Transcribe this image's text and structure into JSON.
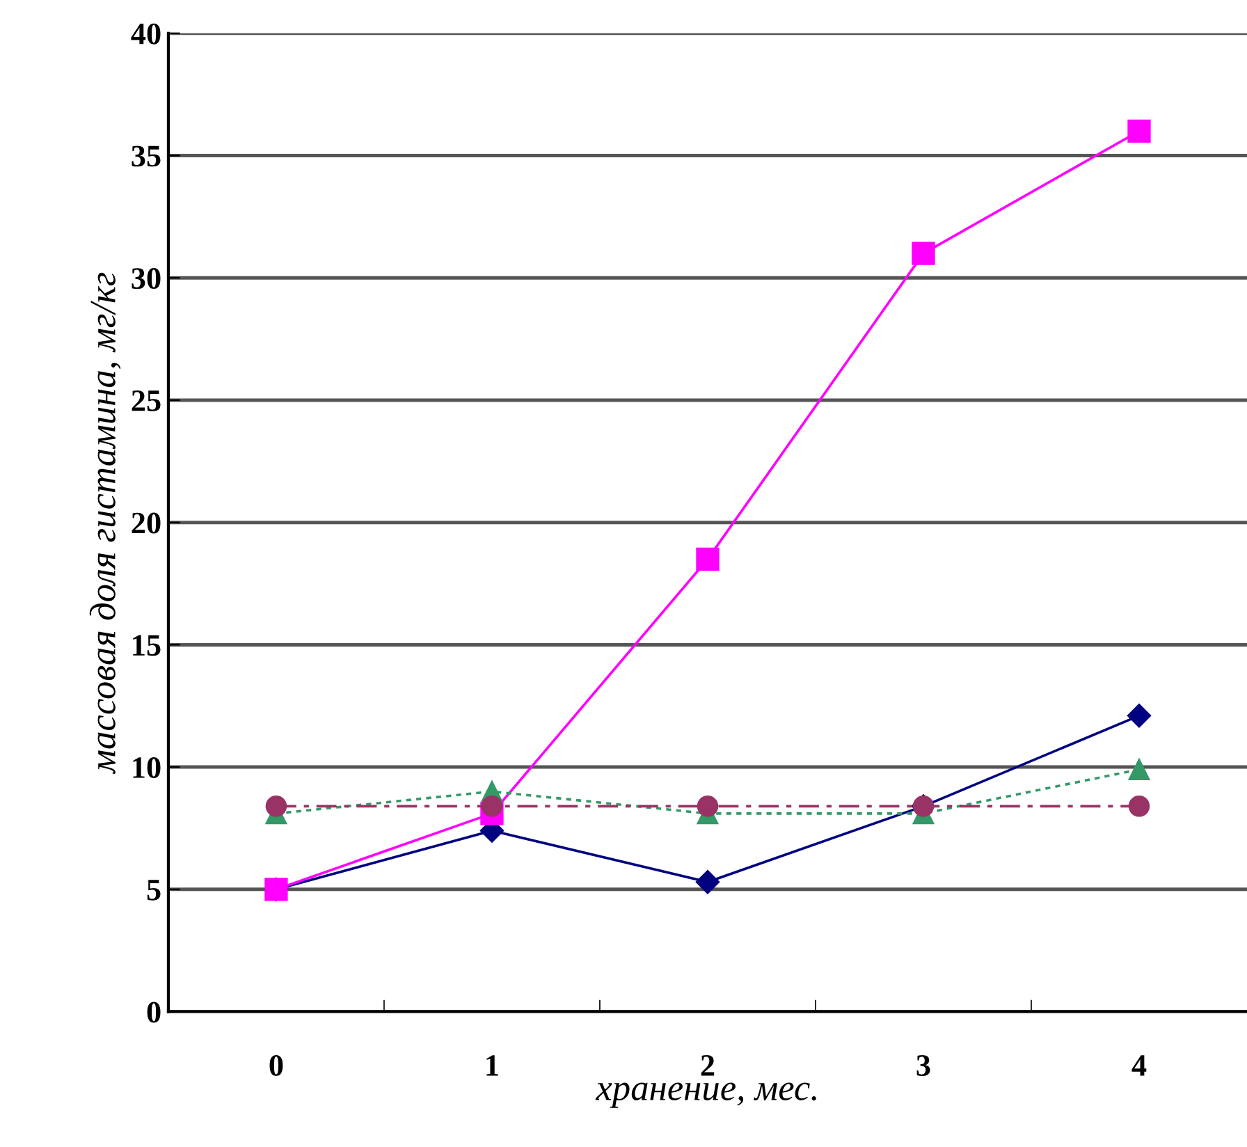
{
  "chart_data": {
    "type": "line",
    "xlabel": "хранение, мес.",
    "ylabel": "массовая доля гистамина, мг/кг",
    "categories": [
      "0",
      "1",
      "2",
      "3",
      "4"
    ],
    "series": [
      {
        "color": "#000080",
        "marker": "diamond",
        "line_style": "solid",
        "values": [
          5.0,
          7.4,
          5.3,
          8.4,
          12.1
        ]
      },
      {
        "color": "#ff00ff",
        "marker": "square",
        "line_style": "solid",
        "values": [
          5.0,
          8.1,
          18.5,
          31.0,
          36.0
        ]
      },
      {
        "color": "#339966",
        "marker": "triangle",
        "line_style": "dotted",
        "values": [
          8.1,
          9.0,
          8.1,
          8.1,
          9.9
        ]
      },
      {
        "color": "#993366",
        "marker": "circle",
        "line_style": "dashed",
        "values": [
          8.4,
          8.4,
          8.4,
          8.4,
          8.4
        ]
      }
    ],
    "ylim": [
      0,
      40
    ],
    "yticks": [
      0,
      5,
      10,
      15,
      20,
      25,
      30,
      35,
      40
    ],
    "grid": "y"
  }
}
